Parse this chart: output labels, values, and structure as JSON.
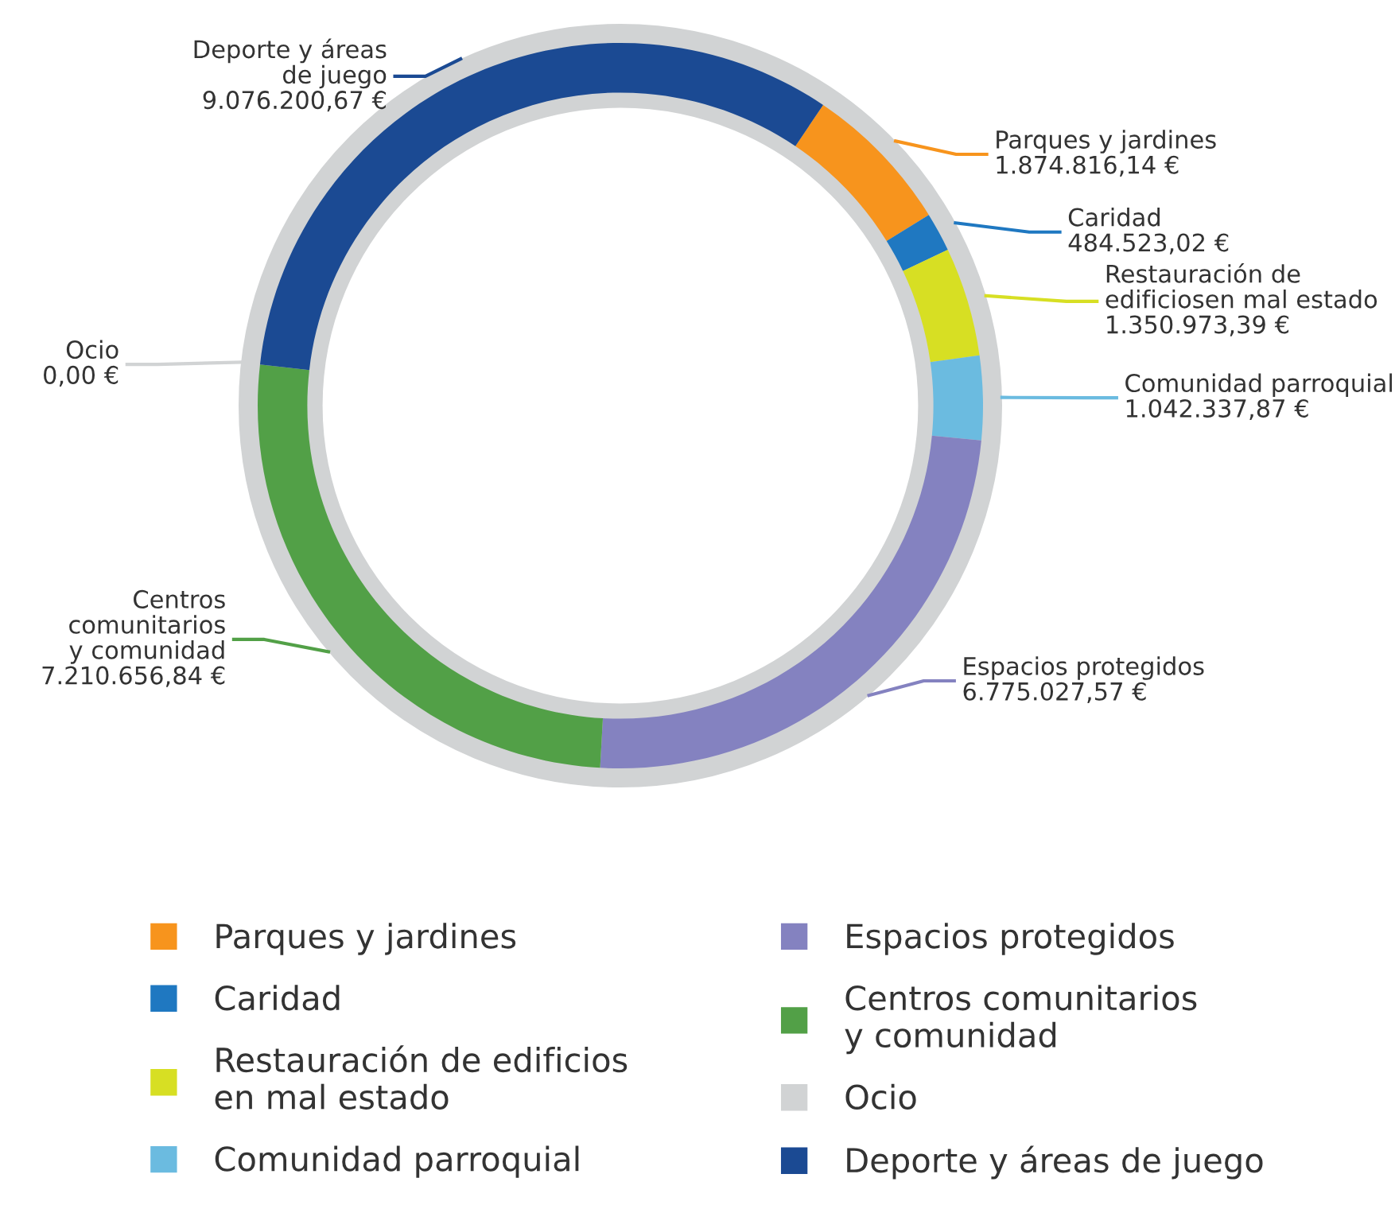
{
  "chart_data": {
    "type": "donut",
    "categories": [
      "Parques y jardines",
      "Caridad",
      "Restauración de edificios\nen mal estado",
      "Comunidad parroquial",
      "Espacios protegidos",
      "Centros comunitarios\ny comunidad",
      "Ocio",
      "Deporte y áreas de juego"
    ],
    "values": [
      1874816.14,
      484523.02,
      1350973.39,
      1042337.87,
      6775027.57,
      7210656.84,
      0.0,
      9076200.67
    ],
    "colors": [
      "#f7941d",
      "#1f78c1",
      "#d7df23",
      "#6bbbe0",
      "#8482c0",
      "#52a047",
      "#d1d3d4",
      "#1b4a93"
    ],
    "value_labels": [
      "Parques y jardines\n1.874.816,14 €",
      "Caridad\n484.523,02 €",
      "Restauración de\nedificiosen mal estado\n1.350.973,39 €",
      "Comunidad parroquial\n1.042.337,87 €",
      "Espacios protegidos\n6.775.027,57 €",
      "Centros\ncomunitarios\ny comunidad\n7.210.656,84 €",
      "Ocio\n0,00 €",
      "Deporte y áreas\nde juego\n9.076.200,67 €"
    ],
    "legend": "bottom"
  }
}
